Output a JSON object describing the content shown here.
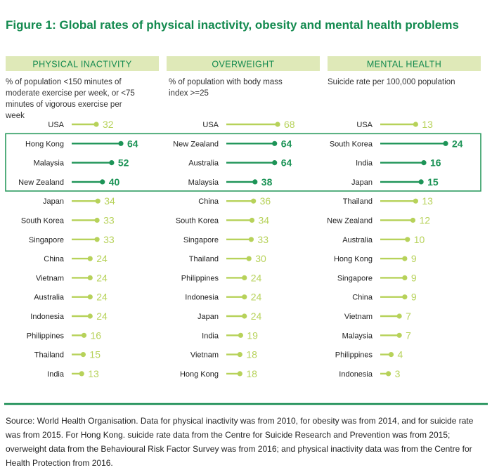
{
  "title": "Figure 1: Global rates of physical inactivity, obesity and mental health problems",
  "source": "Source: World Health Organisation. Data for physical inactivity was from 2010, for obesity was from 2014, and for suicide rate was from 2015. For Hong Kong. suicide rate data from the Centre for Suicide Research and Prevention was from 2015; overweight data from the Behavioural Risk Factor Survey was from 2016; and physical inactivity data was from the Centre for Health Protection from 2016.",
  "colors": {
    "title": "#138a4f",
    "header_bg": "#dfe9b8",
    "highlight": "#1d9457",
    "normal": "#b7d25a",
    "highlight_box": "#2a9a5e",
    "rule": "#138a4f"
  },
  "chart_data": [
    {
      "type": "lollipop",
      "title": "PHYSICAL INACTIVITY",
      "subtitle": "% of population <150 minutes of moderate exercise per week, or <75 minutes of vigorous exercise per week",
      "categories": [
        "USA",
        "Hong Kong",
        "Malaysia",
        "New Zealand",
        "Japan",
        "South Korea",
        "Singapore",
        "China",
        "Vietnam",
        "Australia",
        "Indonesia",
        "Philippines",
        "Thailand",
        "India"
      ],
      "values": [
        32,
        64,
        52,
        40,
        34,
        33,
        33,
        24,
        24,
        24,
        24,
        16,
        15,
        13
      ],
      "highlighted": [
        "Hong Kong",
        "Malaysia",
        "New Zealand"
      ],
      "xlim": [
        0,
        64
      ]
    },
    {
      "type": "lollipop",
      "title": "OVERWEIGHT",
      "subtitle": "% of population with body mass index >=25",
      "categories": [
        "USA",
        "New Zealand",
        "Australia",
        "Malaysia",
        "China",
        "South Korea",
        "Singapore",
        "Thailand",
        "Philippines",
        "Indonesia",
        "Japan",
        "India",
        "Vietnam",
        "Hong Kong"
      ],
      "values": [
        68,
        64,
        64,
        38,
        36,
        34,
        33,
        30,
        24,
        24,
        24,
        19,
        18,
        18
      ],
      "highlighted": [
        "New Zealand",
        "Australia",
        "Malaysia"
      ],
      "xlim": [
        0,
        68
      ]
    },
    {
      "type": "lollipop",
      "title": "MENTAL HEALTH",
      "subtitle": "Suicide rate per 100,000 population",
      "categories": [
        "USA",
        "South Korea",
        "India",
        "Japan",
        "Thailand",
        "New Zealand",
        "Australia",
        "Hong Kong",
        "Singapore",
        "China",
        "Vietnam",
        "Malaysia",
        "Philippines",
        "Indonesia"
      ],
      "values": [
        13,
        24,
        16,
        15,
        13,
        12,
        10,
        9,
        9,
        9,
        7,
        7,
        4,
        3
      ],
      "highlighted": [
        "South Korea",
        "India",
        "Japan"
      ],
      "xlim": [
        0,
        24
      ]
    }
  ]
}
